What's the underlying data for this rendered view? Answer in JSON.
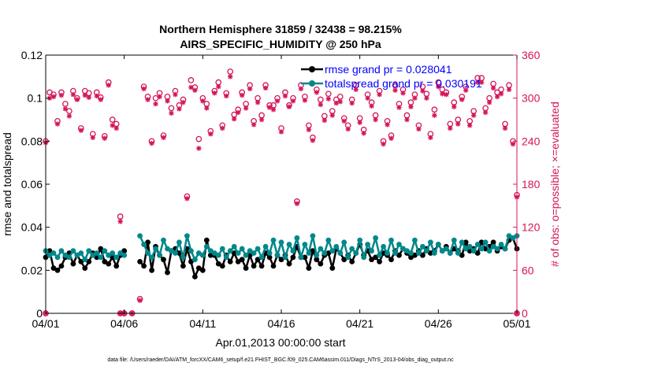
{
  "chart_data": {
    "type": "line",
    "title_line1": "Northern Hemisphere 31859 / 32438 = 98.215%",
    "title_line2": "AIRS_SPECIFIC_HUMIDITY @ 250 hPa",
    "xlabel": "Apr.01,2013 00:00:00 start",
    "ylabel_left": "rmse and totalspread",
    "ylabel_right": "# of obs: o=possible; ×=evaluated",
    "footer": "data file: /Users/raeder/DAI/ATM_forcXX/CAM6_setup/f.e21.FHIST_BGC.f09_025.CAM6assim.011/Diags_NTrS_2013-04/obs_diag_output.nc",
    "xlim": [
      0,
      30
    ],
    "ylim_left": [
      0,
      0.12
    ],
    "ylim_right": [
      0,
      360
    ],
    "x_ticks": [
      0,
      5,
      10,
      15,
      20,
      25,
      30
    ],
    "x_tick_labels": [
      "04/01",
      "04/06",
      "04/11",
      "04/16",
      "04/21",
      "04/26",
      "05/01"
    ],
    "y_left_ticks": [
      "0",
      "0.02",
      "0.04",
      "0.06",
      "0.08",
      "0.1",
      "0.12"
    ],
    "y_right_ticks": [
      "0",
      "60",
      "120",
      "180",
      "240",
      "300",
      "360"
    ],
    "colors": {
      "rmse": "#000000",
      "spread": "#00888a",
      "obs": "#d4145a",
      "legend_text": "#0000ff"
    },
    "series": [
      {
        "name": "rmse grand pr = 0.028041",
        "x": [
          0.0,
          0.25,
          0.5,
          0.75,
          1.0,
          1.25,
          1.5,
          1.75,
          2.0,
          2.25,
          2.5,
          2.75,
          3.0,
          3.25,
          3.5,
          3.75,
          4.0,
          4.25,
          4.5,
          4.75,
          5.0,
          6.0,
          6.25,
          6.5,
          6.75,
          7.0,
          7.25,
          7.5,
          7.75,
          8.0,
          8.25,
          8.5,
          8.75,
          9.0,
          9.25,
          9.5,
          9.75,
          10.0,
          10.25,
          10.5,
          10.75,
          11.0,
          11.25,
          11.5,
          11.75,
          12.0,
          12.25,
          12.5,
          12.75,
          13.0,
          13.25,
          13.5,
          13.75,
          14.0,
          14.25,
          14.5,
          14.75,
          15.0,
          15.25,
          15.5,
          15.75,
          16.0,
          16.25,
          16.5,
          16.75,
          17.0,
          17.25,
          17.5,
          17.75,
          18.0,
          18.25,
          18.5,
          18.75,
          19.0,
          19.25,
          19.5,
          19.75,
          20.0,
          20.25,
          20.5,
          20.75,
          21.0,
          21.25,
          21.5,
          21.75,
          22.0,
          22.25,
          22.5,
          22.75,
          23.0,
          23.25,
          23.5,
          23.75,
          24.0,
          24.25,
          24.5,
          24.75,
          25.0,
          25.25,
          25.5,
          25.75,
          26.0,
          26.25,
          26.5,
          26.75,
          27.0,
          27.25,
          27.5,
          27.75,
          28.0,
          28.25,
          28.5,
          28.75,
          29.0,
          29.25,
          29.5,
          29.75,
          30.0
        ],
        "values": [
          0.026,
          0.029,
          0.021,
          0.02,
          0.022,
          0.026,
          0.028,
          0.023,
          0.027,
          0.024,
          0.021,
          0.024,
          0.028,
          0.026,
          0.03,
          0.024,
          0.023,
          0.026,
          0.022,
          0.027,
          0.029,
          0.024,
          0.022,
          0.033,
          0.02,
          0.031,
          0.027,
          0.025,
          0.019,
          0.029,
          0.03,
          0.028,
          0.022,
          0.03,
          0.024,
          0.017,
          0.021,
          0.02,
          0.034,
          0.027,
          0.027,
          0.023,
          0.022,
          0.027,
          0.024,
          0.028,
          0.024,
          0.025,
          0.021,
          0.027,
          0.022,
          0.025,
          0.022,
          0.028,
          0.026,
          0.022,
          0.027,
          0.025,
          0.027,
          0.023,
          0.026,
          0.031,
          0.026,
          0.026,
          0.021,
          0.029,
          0.025,
          0.023,
          0.027,
          0.028,
          0.021,
          0.03,
          0.028,
          0.025,
          0.027,
          0.024,
          0.028,
          0.032,
          0.027,
          0.029,
          0.025,
          0.026,
          0.024,
          0.028,
          0.027,
          0.025,
          0.029,
          0.027,
          0.03,
          0.028,
          0.026,
          0.027,
          0.029,
          0.027,
          0.03,
          0.028,
          0.029,
          0.032,
          0.029,
          0.031,
          0.028,
          0.03,
          0.029,
          0.027,
          0.033,
          0.029,
          0.03,
          0.028,
          0.033,
          0.03,
          0.031,
          0.033,
          0.029,
          0.031,
          0.03,
          0.034,
          0.035,
          0.03
        ]
      },
      {
        "name": "totalspread grand pr = 0.030191",
        "x": [
          0.0,
          0.25,
          0.5,
          0.75,
          1.0,
          1.25,
          1.5,
          1.75,
          2.0,
          2.25,
          2.5,
          2.75,
          3.0,
          3.25,
          3.5,
          3.75,
          4.0,
          4.25,
          4.5,
          4.75,
          5.0,
          6.0,
          6.25,
          6.5,
          6.75,
          7.0,
          7.25,
          7.5,
          7.75,
          8.0,
          8.25,
          8.5,
          8.75,
          9.0,
          9.25,
          9.5,
          9.75,
          10.0,
          10.25,
          10.5,
          10.75,
          11.0,
          11.25,
          11.5,
          11.75,
          12.0,
          12.25,
          12.5,
          12.75,
          13.0,
          13.25,
          13.5,
          13.75,
          14.0,
          14.25,
          14.5,
          14.75,
          15.0,
          15.25,
          15.5,
          15.75,
          16.0,
          16.25,
          16.5,
          16.75,
          17.0,
          17.25,
          17.5,
          17.75,
          18.0,
          18.25,
          18.5,
          18.75,
          19.0,
          19.25,
          19.5,
          19.75,
          20.0,
          20.25,
          20.5,
          20.75,
          21.0,
          21.25,
          21.5,
          21.75,
          22.0,
          22.25,
          22.5,
          22.75,
          23.0,
          23.25,
          23.5,
          23.75,
          24.0,
          24.25,
          24.5,
          24.75,
          25.0,
          25.25,
          25.5,
          25.75,
          26.0,
          26.25,
          26.5,
          26.75,
          27.0,
          27.25,
          27.5,
          27.75,
          28.0,
          28.25,
          28.5,
          28.75,
          29.0,
          29.25,
          29.5,
          29.75,
          30.0
        ],
        "values": [
          0.029,
          0.027,
          0.028,
          0.026,
          0.029,
          0.027,
          0.026,
          0.029,
          0.027,
          0.028,
          0.025,
          0.029,
          0.027,
          0.028,
          0.026,
          0.029,
          0.027,
          0.028,
          0.026,
          0.028,
          0.027,
          0.036,
          0.032,
          0.028,
          0.026,
          0.03,
          0.027,
          0.034,
          0.03,
          0.029,
          0.028,
          0.033,
          0.026,
          0.036,
          0.029,
          0.025,
          0.028,
          0.027,
          0.031,
          0.029,
          0.028,
          0.027,
          0.03,
          0.026,
          0.029,
          0.031,
          0.028,
          0.03,
          0.027,
          0.029,
          0.028,
          0.03,
          0.026,
          0.031,
          0.028,
          0.034,
          0.027,
          0.033,
          0.026,
          0.032,
          0.029,
          0.035,
          0.026,
          0.032,
          0.028,
          0.036,
          0.027,
          0.03,
          0.028,
          0.034,
          0.029,
          0.031,
          0.028,
          0.033,
          0.026,
          0.03,
          0.028,
          0.034,
          0.026,
          0.032,
          0.029,
          0.035,
          0.027,
          0.031,
          0.028,
          0.034,
          0.028,
          0.032,
          0.03,
          0.029,
          0.028,
          0.034,
          0.028,
          0.031,
          0.029,
          0.033,
          0.028,
          0.032,
          0.029,
          0.03,
          0.028,
          0.034,
          0.028,
          0.033,
          0.03,
          0.031,
          0.029,
          0.032,
          0.03,
          0.033,
          0.029,
          0.031,
          0.03,
          0.032,
          0.03,
          0.036,
          0.035,
          0.036
        ]
      }
    ],
    "obs_points": [
      {
        "x": 0.0,
        "possible": 240,
        "evaluated": 238
      },
      {
        "x": 0.0,
        "possible": 0,
        "evaluated": 0
      },
      {
        "x": 0.25,
        "possible": 308,
        "evaluated": 300
      },
      {
        "x": 0.5,
        "possible": 305,
        "evaluated": 302
      },
      {
        "x": 0.75,
        "possible": 268,
        "evaluated": 264
      },
      {
        "x": 1.0,
        "possible": 308,
        "evaluated": 304
      },
      {
        "x": 1.25,
        "possible": 292,
        "evaluated": 285
      },
      {
        "x": 1.5,
        "possible": 282,
        "evaluated": 275
      },
      {
        "x": 1.75,
        "possible": 310,
        "evaluated": 305
      },
      {
        "x": 2.0,
        "possible": 300,
        "evaluated": 298
      },
      {
        "x": 2.25,
        "possible": 258,
        "evaluated": 255
      },
      {
        "x": 2.5,
        "possible": 310,
        "evaluated": 304
      },
      {
        "x": 2.75,
        "possible": 307,
        "evaluated": 301
      },
      {
        "x": 3.0,
        "possible": 250,
        "evaluated": 245
      },
      {
        "x": 3.25,
        "possible": 308,
        "evaluated": 303
      },
      {
        "x": 3.5,
        "possible": 301,
        "evaluated": 298
      },
      {
        "x": 3.75,
        "possible": 247,
        "evaluated": 244
      },
      {
        "x": 4.0,
        "possible": 322,
        "evaluated": 318
      },
      {
        "x": 4.25,
        "possible": 270,
        "evaluated": 262
      },
      {
        "x": 4.5,
        "possible": 264,
        "evaluated": 258
      },
      {
        "x": 4.75,
        "possible": 135,
        "evaluated": 128
      },
      {
        "x": 4.75,
        "possible": 0,
        "evaluated": 0
      },
      {
        "x": 5.0,
        "possible": 0,
        "evaluated": 0
      },
      {
        "x": 5.5,
        "possible": 0,
        "evaluated": 0
      },
      {
        "x": 6.0,
        "possible": 20,
        "evaluated": 18
      },
      {
        "x": 6.25,
        "possible": 316,
        "evaluated": 313
      },
      {
        "x": 6.5,
        "possible": 302,
        "evaluated": 298
      },
      {
        "x": 6.75,
        "possible": 240,
        "evaluated": 237
      },
      {
        "x": 7.0,
        "possible": 300,
        "evaluated": 292
      },
      {
        "x": 7.25,
        "possible": 307,
        "evaluated": 302
      },
      {
        "x": 7.5,
        "possible": 248,
        "evaluated": 245
      },
      {
        "x": 7.75,
        "possible": 302,
        "evaluated": 296
      },
      {
        "x": 8.0,
        "possible": 286,
        "evaluated": 279
      },
      {
        "x": 8.25,
        "possible": 310,
        "evaluated": 305
      },
      {
        "x": 8.5,
        "possible": 290,
        "evaluated": 285
      },
      {
        "x": 8.75,
        "possible": 298,
        "evaluated": 294
      },
      {
        "x": 9.0,
        "possible": 163,
        "evaluated": 160
      },
      {
        "x": 9.25,
        "possible": 325,
        "evaluated": 315
      },
      {
        "x": 9.5,
        "possible": 315,
        "evaluated": 311
      },
      {
        "x": 9.75,
        "possible": 243,
        "evaluated": 230
      },
      {
        "x": 10.0,
        "possible": 300,
        "evaluated": 296
      },
      {
        "x": 10.25,
        "possible": 292,
        "evaluated": 286
      },
      {
        "x": 10.5,
        "possible": 254,
        "evaluated": 250
      },
      {
        "x": 10.75,
        "possible": 310,
        "evaluated": 307
      },
      {
        "x": 11.0,
        "possible": 322,
        "evaluated": 316
      },
      {
        "x": 11.25,
        "possible": 262,
        "evaluated": 258
      },
      {
        "x": 11.5,
        "possible": 307,
        "evaluated": 303
      },
      {
        "x": 11.75,
        "possible": 337,
        "evaluated": 330
      },
      {
        "x": 12.0,
        "possible": 277,
        "evaluated": 271
      },
      {
        "x": 12.25,
        "possible": 284,
        "evaluated": 280
      },
      {
        "x": 12.5,
        "possible": 308,
        "evaluated": 304
      },
      {
        "x": 12.75,
        "possible": 292,
        "evaluated": 286
      },
      {
        "x": 13.0,
        "possible": 318,
        "evaluated": 313
      },
      {
        "x": 13.25,
        "possible": 268,
        "evaluated": 263
      },
      {
        "x": 13.5,
        "possible": 300,
        "evaluated": 294
      },
      {
        "x": 13.75,
        "possible": 276,
        "evaluated": 270
      },
      {
        "x": 14.0,
        "possible": 318,
        "evaluated": 314
      },
      {
        "x": 14.25,
        "possible": 290,
        "evaluated": 287
      },
      {
        "x": 14.5,
        "possible": 290,
        "evaluated": 284
      },
      {
        "x": 14.75,
        "possible": 300,
        "evaluated": 296
      },
      {
        "x": 15.0,
        "possible": 258,
        "evaluated": 253
      },
      {
        "x": 15.25,
        "possible": 308,
        "evaluated": 303
      },
      {
        "x": 15.5,
        "possible": 290,
        "evaluated": 288
      },
      {
        "x": 15.75,
        "possible": 300,
        "evaluated": 296
      },
      {
        "x": 16.0,
        "possible": 156,
        "evaluated": 153
      },
      {
        "x": 16.25,
        "possible": 318,
        "evaluated": 313
      },
      {
        "x": 16.5,
        "possible": 302,
        "evaluated": 297
      },
      {
        "x": 16.75,
        "possible": 262,
        "evaluated": 256
      },
      {
        "x": 17.0,
        "possible": 245,
        "evaluated": 241
      },
      {
        "x": 17.25,
        "possible": 312,
        "evaluated": 308
      },
      {
        "x": 17.5,
        "possible": 298,
        "evaluated": 291
      },
      {
        "x": 17.75,
        "possible": 275,
        "evaluated": 269
      },
      {
        "x": 18.0,
        "possible": 306,
        "evaluated": 299
      },
      {
        "x": 18.25,
        "possible": 282,
        "evaluated": 276
      },
      {
        "x": 18.5,
        "possible": 298,
        "evaluated": 293
      },
      {
        "x": 18.75,
        "possible": 302,
        "evaluated": 295
      },
      {
        "x": 19.0,
        "possible": 272,
        "evaluated": 268
      },
      {
        "x": 19.25,
        "possible": 262,
        "evaluated": 257
      },
      {
        "x": 19.5,
        "possible": 298,
        "evaluated": 293
      },
      {
        "x": 19.75,
        "possible": 318,
        "evaluated": 312
      },
      {
        "x": 20.0,
        "possible": 272,
        "evaluated": 266
      },
      {
        "x": 20.25,
        "possible": 256,
        "evaluated": 251
      },
      {
        "x": 20.5,
        "possible": 305,
        "evaluated": 300
      },
      {
        "x": 20.75,
        "possible": 294,
        "evaluated": 289
      },
      {
        "x": 21.0,
        "possible": 276,
        "evaluated": 270
      },
      {
        "x": 21.25,
        "possible": 310,
        "evaluated": 305
      },
      {
        "x": 21.5,
        "possible": 240,
        "evaluated": 236
      },
      {
        "x": 21.75,
        "possible": 268,
        "evaluated": 263
      },
      {
        "x": 22.0,
        "possible": 248,
        "evaluated": 244
      },
      {
        "x": 22.25,
        "possible": 318,
        "evaluated": 311
      },
      {
        "x": 22.5,
        "possible": 292,
        "evaluated": 287
      },
      {
        "x": 22.75,
        "possible": 312,
        "evaluated": 307
      },
      {
        "x": 23.0,
        "possible": 276,
        "evaluated": 270
      },
      {
        "x": 23.25,
        "possible": 294,
        "evaluated": 288
      },
      {
        "x": 23.5,
        "possible": 305,
        "evaluated": 300
      },
      {
        "x": 23.75,
        "possible": 262,
        "evaluated": 257
      },
      {
        "x": 24.0,
        "possible": 316,
        "evaluated": 310
      },
      {
        "x": 24.25,
        "possible": 306,
        "evaluated": 300
      },
      {
        "x": 24.5,
        "possible": 250,
        "evaluated": 245
      },
      {
        "x": 24.75,
        "possible": 284,
        "evaluated": 276
      },
      {
        "x": 25.0,
        "possible": 322,
        "evaluated": 316
      },
      {
        "x": 25.25,
        "possible": 312,
        "evaluated": 306
      },
      {
        "x": 25.5,
        "possible": 308,
        "evaluated": 305
      },
      {
        "x": 25.75,
        "possible": 264,
        "evaluated": 258
      },
      {
        "x": 26.0,
        "possible": 294,
        "evaluated": 288
      },
      {
        "x": 26.25,
        "possible": 270,
        "evaluated": 264
      },
      {
        "x": 26.5,
        "possible": 302,
        "evaluated": 298
      },
      {
        "x": 26.75,
        "possible": 316,
        "evaluated": 311
      },
      {
        "x": 27.0,
        "possible": 268,
        "evaluated": 262
      },
      {
        "x": 27.25,
        "possible": 282,
        "evaluated": 276
      },
      {
        "x": 27.5,
        "possible": 328,
        "evaluated": 322
      },
      {
        "x": 27.75,
        "possible": 328,
        "evaluated": 322
      },
      {
        "x": 28.0,
        "possible": 286,
        "evaluated": 280
      },
      {
        "x": 28.25,
        "possible": 300,
        "evaluated": 294
      },
      {
        "x": 28.5,
        "possible": 320,
        "evaluated": 314
      },
      {
        "x": 28.75,
        "possible": 308,
        "evaluated": 302
      },
      {
        "x": 29.0,
        "possible": 312,
        "evaluated": 306
      },
      {
        "x": 29.25,
        "possible": 264,
        "evaluated": 258
      },
      {
        "x": 29.5,
        "possible": 318,
        "evaluated": 312
      },
      {
        "x": 29.75,
        "possible": 240,
        "evaluated": 236
      },
      {
        "x": 30.0,
        "possible": 165,
        "evaluated": 162
      },
      {
        "x": 30.0,
        "possible": 0,
        "evaluated": 0
      }
    ]
  }
}
